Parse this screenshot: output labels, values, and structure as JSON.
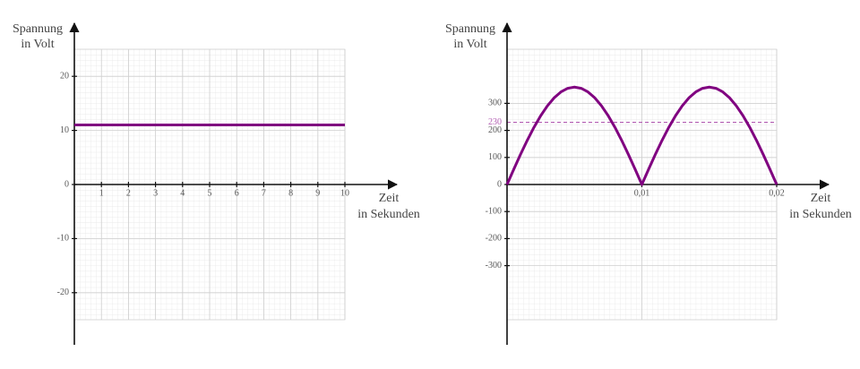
{
  "chart_data": [
    {
      "type": "line",
      "ylabel": [
        "Spannung",
        "in Volt"
      ],
      "xlabel": [
        "Zeit",
        "in Sekunden"
      ],
      "xlim": [
        0,
        10
      ],
      "ylim": [
        -25,
        25
      ],
      "xticks": [
        1,
        2,
        3,
        4,
        5,
        6,
        7,
        8,
        9,
        10
      ],
      "yticks": [
        20,
        10,
        0,
        -10,
        -20
      ],
      "grid": true,
      "series": [
        {
          "color": "#800080",
          "x": [
            0,
            10
          ],
          "values": [
            11,
            11
          ]
        }
      ]
    },
    {
      "type": "line",
      "ylabel": [
        "Spannung",
        "in Volt"
      ],
      "xlabel": [
        "Zeit",
        "in Sekunden"
      ],
      "xlim": [
        0,
        0.02
      ],
      "ylim": [
        -500,
        500
      ],
      "xticks": [
        {
          "value": 0.01,
          "label": "0,01"
        },
        {
          "value": 0.02,
          "label": "0,02"
        }
      ],
      "yticks": [
        300,
        200,
        100,
        0,
        -100,
        -200,
        -300
      ],
      "grid": true,
      "reference_lines": [
        {
          "value": 230,
          "label": "230",
          "color": "#b25cb2"
        }
      ],
      "series": [
        {
          "color": "#800080",
          "x": [
            0,
            0.0005,
            0.001,
            0.0015,
            0.002,
            0.0025,
            0.003,
            0.0035,
            0.004,
            0.0045,
            0.005,
            0.0055,
            0.006,
            0.0065,
            0.007,
            0.0075,
            0.008,
            0.0085,
            0.009,
            0.0095,
            0.01,
            0.0105,
            0.011,
            0.0115,
            0.012,
            0.0125,
            0.013,
            0.0135,
            0.014,
            0.0145,
            0.015,
            0.0155,
            0.016,
            0.0165,
            0.017,
            0.0175,
            0.018,
            0.0185,
            0.019,
            0.0195,
            0.02
          ],
          "values": [
            0,
            56.3,
            111.2,
            163.4,
            211.6,
            254.6,
            291.2,
            320.8,
            342.4,
            355.6,
            360,
            355.6,
            342.4,
            320.8,
            291.2,
            254.6,
            211.6,
            163.4,
            111.2,
            56.3,
            0,
            56.3,
            111.2,
            163.4,
            211.6,
            254.6,
            291.2,
            320.8,
            342.4,
            355.6,
            360,
            355.6,
            342.4,
            320.8,
            291.2,
            254.6,
            211.6,
            163.4,
            111.2,
            56.3,
            0
          ]
        }
      ]
    }
  ]
}
